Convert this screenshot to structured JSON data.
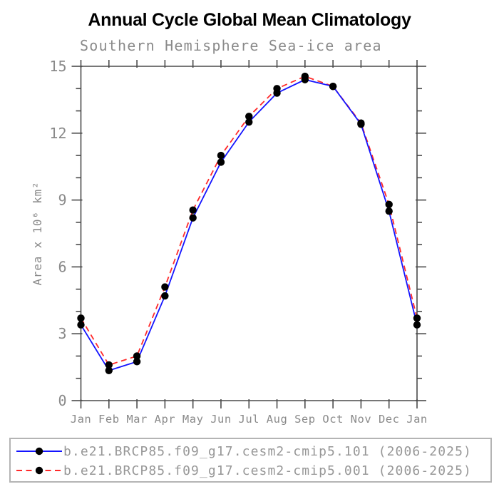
{
  "header": {
    "title": "Annual Cycle Global Mean Climatology",
    "subtitle": "Southern Hemisphere Sea-ice area"
  },
  "chart_data": {
    "type": "line",
    "x_categories": [
      "Jan",
      "Feb",
      "Mar",
      "Apr",
      "May",
      "Jun",
      "Jul",
      "Aug",
      "Sep",
      "Oct",
      "Nov",
      "Dec",
      "Jan"
    ],
    "xlabel": "",
    "ylabel": "Area x 10⁶ km²",
    "ylim": [
      0,
      15
    ],
    "ytick_major": [
      0,
      3,
      6,
      9,
      12,
      15
    ],
    "ytick_minor_step": 1,
    "grid": false,
    "legend_position": "bottom",
    "marker": "filled-black-circle",
    "series": [
      {
        "name": "b.e21.BRCP85.f09_g17.cesm2-cmip5.101 (2006-2025)",
        "color": "#1414ff",
        "style": "solid",
        "values": [
          3.4,
          1.35,
          1.75,
          4.7,
          8.2,
          10.7,
          12.5,
          13.8,
          14.4,
          14.1,
          12.4,
          8.5,
          3.4
        ]
      },
      {
        "name": "b.e21.BRCP85.f09_g17.cesm2-cmip5.001 (2006-2025)",
        "color": "#ff2a2a",
        "style": "dashed",
        "values": [
          3.7,
          1.6,
          2.0,
          5.1,
          8.55,
          11.0,
          12.75,
          14.0,
          14.55,
          14.1,
          12.45,
          8.8,
          3.7
        ]
      }
    ]
  },
  "colors": {
    "title": "#000000",
    "plot_text": "#8a8a8a",
    "axis": "#4a4a4a",
    "marker": "#000000",
    "legend_border": "#b4b4b4",
    "legend_text": "#979797"
  }
}
